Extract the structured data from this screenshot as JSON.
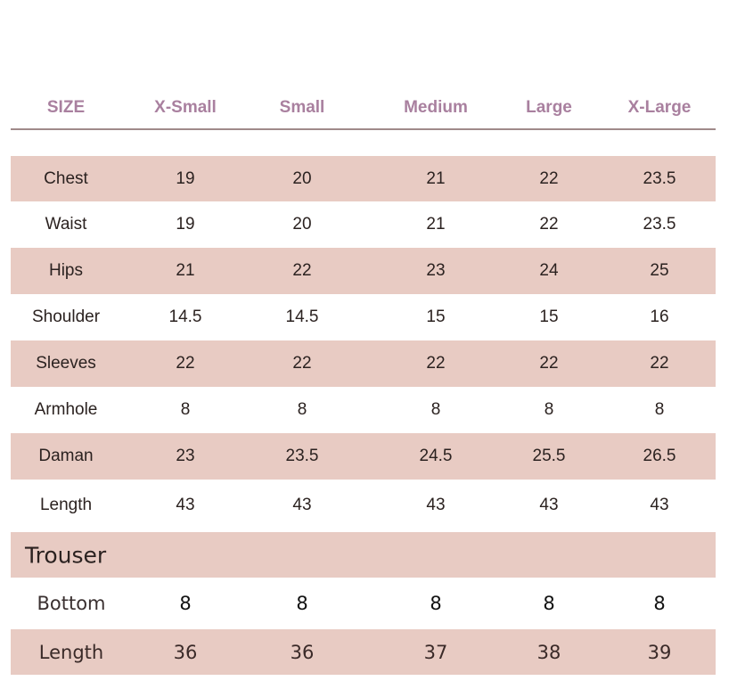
{
  "header": [
    "SIZE",
    "X-Small",
    "Small",
    "Medium",
    "Large",
    "X-Large"
  ],
  "colors": {
    "header_text": "#a9809f",
    "row_shade": "#e8cbc3",
    "rule": "#a08a8a"
  },
  "kurta_rows": [
    {
      "label": "Chest",
      "values": [
        "19",
        "20",
        "21",
        "22",
        "23.5"
      ]
    },
    {
      "label": "Waist",
      "values": [
        "19",
        "20",
        "21",
        "22",
        "23.5"
      ]
    },
    {
      "label": "Hips",
      "values": [
        "21",
        "22",
        "23",
        "24",
        "25"
      ]
    },
    {
      "label": "Shoulder",
      "values": [
        "14.5",
        "14.5",
        "15",
        "15",
        "16"
      ]
    },
    {
      "label": "Sleeves",
      "values": [
        "22",
        "22",
        "22",
        "22",
        "22"
      ]
    },
    {
      "label": "Armhole",
      "values": [
        "8",
        "8",
        "8",
        "8",
        "8"
      ]
    },
    {
      "label": "Daman",
      "values": [
        "23",
        "23.5",
        "24.5",
        "25.5",
        "26.5"
      ]
    },
    {
      "label": "Length",
      "values": [
        "43",
        "43",
        "43",
        "43",
        "43"
      ]
    }
  ],
  "trouser": {
    "title": "Trouser",
    "rows": [
      {
        "label": "Bottom",
        "values": [
          "8",
          "8",
          "8",
          "8",
          "8"
        ]
      },
      {
        "label": "Length",
        "values": [
          "36",
          "36",
          "37",
          "38",
          "39"
        ]
      }
    ]
  }
}
